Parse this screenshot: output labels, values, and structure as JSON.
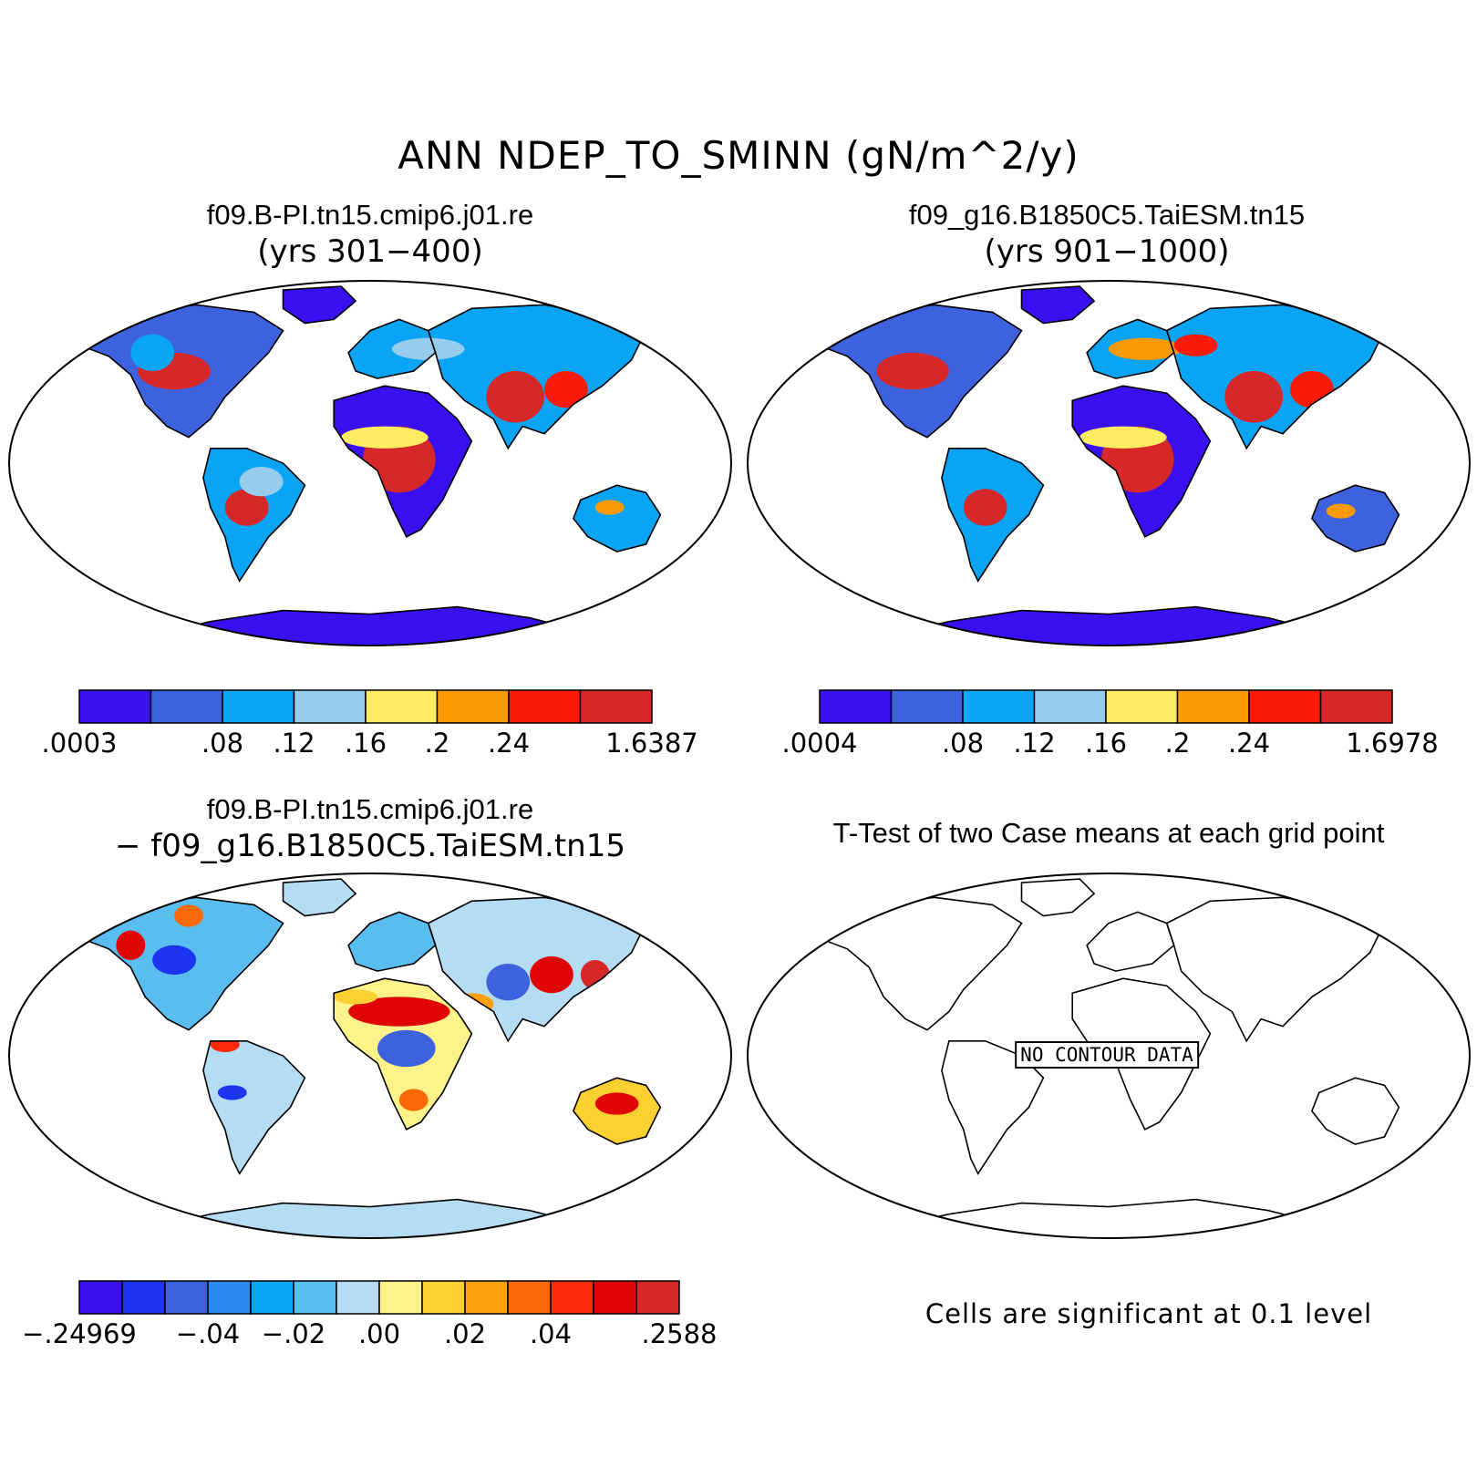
{
  "title": "ANN NDEP_TO_SMINN (gN/m^2/y)",
  "panels": [
    {
      "id": "case1",
      "title": "f09.B-PI.tn15.cmip6.j01.re",
      "subtitle": "(yrs 301−400)",
      "colorbar": {
        "ticks": [
          ".0003",
          ".08",
          ".12",
          ".16",
          ".2",
          ".24",
          "1.6387"
        ],
        "colors": [
          "#3a10f2",
          "#3e62de",
          "#0aa4f5",
          "#96cded",
          "#fdec62",
          "#fc9a04",
          "#fb1a08",
          "#d62729"
        ]
      }
    },
    {
      "id": "case2",
      "title": "f09_g16.B1850C5.TaiESM.tn15",
      "subtitle": "(yrs 901−1000)",
      "colorbar": {
        "ticks": [
          ".0004",
          ".08",
          ".12",
          ".16",
          ".2",
          ".24",
          "1.6978"
        ],
        "colors": [
          "#3a10f2",
          "#3e62de",
          "#0aa4f5",
          "#96cded",
          "#fdec62",
          "#fc9a04",
          "#fb1a08",
          "#d62729"
        ]
      }
    },
    {
      "id": "diff",
      "title": "f09.B-PI.tn15.cmip6.j01.re",
      "subtitle": "− f09_g16.B1850C5.TaiESM.tn15",
      "colorbar": {
        "ticks": [
          "−.24969",
          "−.04",
          "−.02",
          ".00",
          ".02",
          ".04",
          ".2588"
        ],
        "colors": [
          "#3a10f2",
          "#1d35f0",
          "#3e62de",
          "#2b8af2",
          "#0aa4f5",
          "#5abdf0",
          "#b4dcf2",
          "#fdf38a",
          "#fcd030",
          "#fca00c",
          "#fc6a08",
          "#fb2a08",
          "#e00505",
          "#d62729"
        ]
      }
    },
    {
      "id": "ttest",
      "title": "T-Test of two Case means at each grid point",
      "no_data_label": "NO CONTOUR DATA",
      "note": "Cells are significant at 0.1 level"
    }
  ]
}
